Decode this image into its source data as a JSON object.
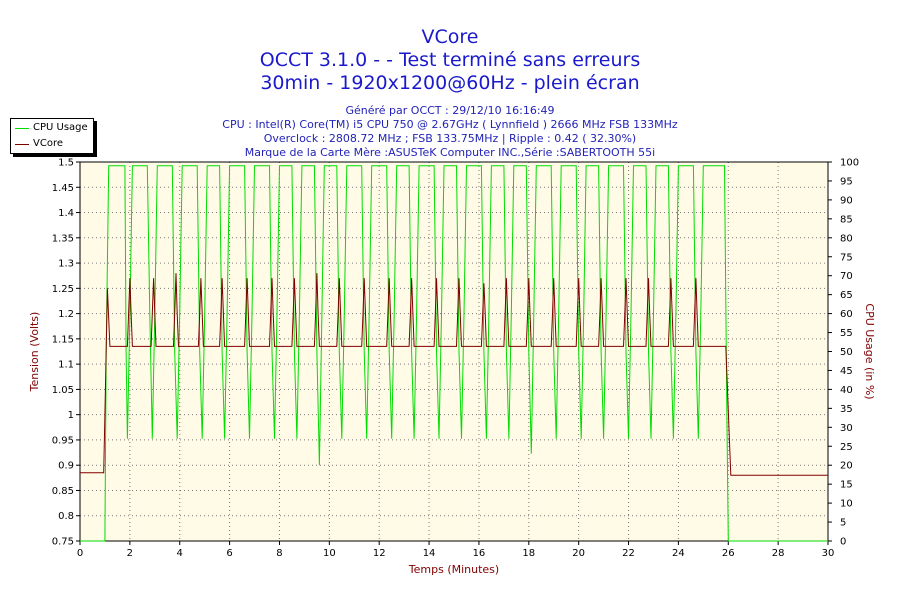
{
  "header": {
    "title": "VCore",
    "subtitle1": "OCCT 3.1.0 -  - Test terminé sans erreurs",
    "subtitle2": "30min - 1920x1200@60Hz - plein écran",
    "info": [
      "Généré par OCCT : 29/12/10 16:16:49",
      "CPU : Intel(R) Core(TM) i5 CPU 750 @ 2.67GHz ( Lynnfield ) 2666 MHz FSB 133MHz",
      "Overclock : 2808.72 MHz ; FSB 133.75MHz | Ripple : 0.42 ( 32.30%)",
      "Marque de la Carte Mère :ASUSTeK Computer INC.,Série :SABERTOOTH 55i"
    ]
  },
  "legend": {
    "items": [
      {
        "label": "CPU Usage",
        "color": "#00dd00"
      },
      {
        "label": "VCore",
        "color": "#800000"
      }
    ]
  },
  "colors": {
    "plot_bg": "#fffbe6",
    "grid": "#7a7a7a",
    "cpu": "#00dd00",
    "vcore": "#800000",
    "axis_title_left": "#800000",
    "axis_title_bottom": "#800000",
    "axis_title_right": "#800000"
  },
  "chart_data": {
    "type": "line",
    "xlabel": "Temps (Minutes)",
    "ylabel_left": "Tension (Volts)",
    "ylabel_right": "CPU Usage (in %)",
    "xlim": [
      0,
      30
    ],
    "ylim_left": [
      0.75,
      1.5
    ],
    "ylim_right": [
      0,
      100
    ],
    "xticks": [
      "0",
      "2",
      "4",
      "6",
      "8",
      "10",
      "12",
      "14",
      "16",
      "18",
      "20",
      "22",
      "24",
      "26",
      "28",
      "30"
    ],
    "yticks_left": [
      "0.75",
      "0.8",
      "0.85",
      "0.9",
      "0.95",
      "1",
      "1.05",
      "1.1",
      "1.15",
      "1.2",
      "1.25",
      "1.3",
      "1.35",
      "1.4",
      "1.45",
      "1.5"
    ],
    "yticks_right": [
      "0",
      "5",
      "10",
      "15",
      "20",
      "25",
      "30",
      "35",
      "40",
      "45",
      "50",
      "55",
      "60",
      "65",
      "70",
      "75",
      "80",
      "85",
      "90",
      "95",
      "100"
    ],
    "grid": true,
    "legend_position": "top-left",
    "series": [
      {
        "name": "CPU Usage",
        "axis": "right",
        "x": [
          0,
          1.0,
          1.05,
          1.15,
          1.25,
          1.8,
          1.85,
          1.9,
          2.0,
          2.1,
          2.7,
          2.8,
          2.9,
          3.0,
          3.1,
          3.7,
          3.8,
          3.9,
          4.0,
          4.1,
          4.7,
          4.8,
          4.9,
          5.0,
          5.1,
          5.6,
          5.7,
          5.8,
          5.9,
          6.0,
          6.6,
          6.7,
          6.8,
          6.9,
          7.0,
          7.6,
          7.7,
          7.8,
          7.9,
          8.0,
          8.5,
          8.6,
          8.7,
          8.8,
          8.9,
          9.4,
          9.5,
          9.6,
          9.7,
          9.8,
          10.3,
          10.4,
          10.5,
          10.6,
          10.7,
          11.3,
          11.4,
          11.5,
          11.6,
          11.7,
          12.3,
          12.4,
          12.5,
          12.6,
          12.7,
          13.2,
          13.3,
          13.4,
          13.5,
          13.6,
          14.2,
          14.3,
          14.4,
          14.5,
          14.6,
          15.1,
          15.2,
          15.3,
          15.4,
          15.5,
          16.1,
          16.2,
          16.3,
          16.4,
          16.5,
          17.0,
          17.1,
          17.2,
          17.3,
          17.4,
          17.9,
          18.0,
          18.1,
          18.2,
          18.3,
          18.9,
          19.0,
          19.1,
          19.2,
          19.3,
          19.9,
          20.0,
          20.1,
          20.2,
          20.3,
          20.8,
          20.9,
          21.0,
          21.1,
          21.2,
          21.8,
          21.9,
          22.0,
          22.1,
          22.2,
          22.7,
          22.8,
          22.9,
          23.0,
          23.1,
          23.6,
          23.7,
          23.8,
          23.9,
          24.0,
          24.6,
          24.7,
          24.8,
          24.9,
          25.0,
          25.85,
          25.95,
          26.0,
          26.1,
          30
        ],
        "values": [
          0,
          0,
          50,
          99,
          99,
          99,
          50,
          27,
          60,
          99,
          99,
          60,
          27,
          60,
          99,
          99,
          50,
          27,
          60,
          99,
          99,
          50,
          27,
          60,
          99,
          99,
          50,
          27,
          60,
          99,
          99,
          50,
          27,
          60,
          99,
          99,
          50,
          27,
          60,
          99,
          99,
          50,
          27,
          60,
          99,
          99,
          50,
          20,
          60,
          99,
          99,
          50,
          27,
          60,
          99,
          99,
          50,
          27,
          60,
          99,
          99,
          50,
          27,
          60,
          99,
          99,
          50,
          27,
          60,
          99,
          99,
          50,
          27,
          60,
          99,
          99,
          50,
          27,
          60,
          99,
          99,
          50,
          27,
          60,
          99,
          99,
          50,
          27,
          60,
          99,
          99,
          50,
          23,
          60,
          99,
          99,
          50,
          27,
          60,
          99,
          99,
          50,
          27,
          60,
          99,
          99,
          50,
          27,
          60,
          99,
          99,
          50,
          27,
          60,
          99,
          99,
          50,
          27,
          60,
          99,
          99,
          50,
          27,
          60,
          99,
          99,
          50,
          27,
          60,
          99,
          99,
          30,
          0,
          0,
          0
        ]
      },
      {
        "name": "VCore",
        "axis": "left",
        "x": [
          0,
          0.95,
          1.0,
          1.1,
          1.2,
          1.3,
          1.9,
          1.95,
          2.0,
          2.05,
          2.1,
          2.85,
          2.9,
          2.95,
          3.0,
          3.05,
          3.75,
          3.8,
          3.85,
          3.9,
          3.95,
          4.75,
          4.8,
          4.85,
          4.9,
          4.95,
          5.6,
          5.65,
          5.7,
          5.75,
          5.8,
          6.6,
          6.65,
          6.7,
          6.75,
          6.8,
          7.6,
          7.65,
          7.7,
          7.75,
          7.8,
          8.5,
          8.55,
          8.6,
          8.65,
          8.7,
          9.4,
          9.45,
          9.5,
          9.55,
          9.6,
          10.3,
          10.35,
          10.4,
          10.45,
          10.5,
          11.3,
          11.35,
          11.4,
          11.45,
          11.5,
          12.3,
          12.35,
          12.4,
          12.45,
          12.5,
          13.2,
          13.25,
          13.3,
          13.35,
          13.4,
          14.2,
          14.25,
          14.3,
          14.35,
          14.4,
          15.1,
          15.15,
          15.2,
          15.25,
          15.3,
          16.1,
          16.15,
          16.2,
          16.25,
          16.3,
          17.0,
          17.05,
          17.1,
          17.15,
          17.2,
          17.9,
          17.95,
          18.0,
          18.05,
          18.1,
          18.9,
          18.95,
          19.0,
          19.05,
          19.1,
          19.9,
          19.95,
          20.0,
          20.05,
          20.1,
          20.8,
          20.85,
          20.9,
          20.95,
          21.0,
          21.8,
          21.85,
          21.9,
          21.95,
          22.0,
          22.7,
          22.75,
          22.8,
          22.85,
          22.9,
          23.6,
          23.65,
          23.7,
          23.75,
          23.8,
          24.6,
          24.65,
          24.7,
          24.75,
          24.8,
          25.9,
          26.1,
          26.15,
          30
        ],
        "values": [
          0.885,
          0.885,
          1.0,
          1.25,
          1.135,
          1.135,
          1.135,
          1.2,
          1.27,
          1.2,
          1.135,
          1.135,
          1.2,
          1.27,
          1.2,
          1.135,
          1.135,
          1.2,
          1.28,
          1.2,
          1.135,
          1.135,
          1.2,
          1.27,
          1.2,
          1.135,
          1.135,
          1.2,
          1.27,
          1.2,
          1.135,
          1.135,
          1.2,
          1.27,
          1.2,
          1.135,
          1.135,
          1.2,
          1.27,
          1.2,
          1.135,
          1.135,
          1.2,
          1.27,
          1.2,
          1.135,
          1.135,
          1.2,
          1.28,
          1.2,
          1.135,
          1.135,
          1.2,
          1.27,
          1.2,
          1.135,
          1.135,
          1.2,
          1.27,
          1.2,
          1.135,
          1.135,
          1.2,
          1.27,
          1.2,
          1.135,
          1.135,
          1.2,
          1.27,
          1.2,
          1.135,
          1.135,
          1.2,
          1.27,
          1.2,
          1.135,
          1.135,
          1.2,
          1.27,
          1.2,
          1.135,
          1.135,
          1.2,
          1.26,
          1.2,
          1.135,
          1.135,
          1.2,
          1.27,
          1.2,
          1.135,
          1.135,
          1.2,
          1.27,
          1.2,
          1.135,
          1.135,
          1.2,
          1.27,
          1.2,
          1.135,
          1.135,
          1.2,
          1.27,
          1.2,
          1.135,
          1.135,
          1.2,
          1.27,
          1.2,
          1.135,
          1.135,
          1.2,
          1.27,
          1.2,
          1.135,
          1.135,
          1.2,
          1.27,
          1.2,
          1.135,
          1.135,
          1.2,
          1.27,
          1.2,
          1.135,
          1.135,
          1.2,
          1.27,
          1.2,
          1.135,
          1.135,
          0.88,
          0.88,
          0.88
        ]
      }
    ]
  }
}
